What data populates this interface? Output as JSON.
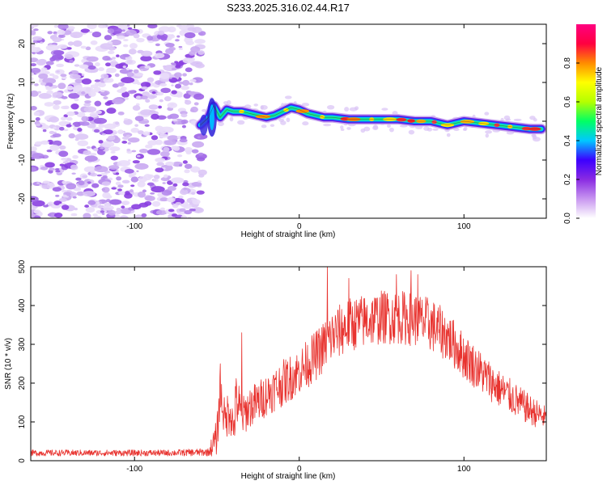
{
  "title": "S233.2025.316.02.44.R17",
  "colors": {
    "line": "#e8332f",
    "axes": "#000000",
    "background": "#ffffff"
  },
  "chart_data": [
    {
      "type": "heatmap",
      "title": "S233.2025.316.02.44.R17",
      "xlabel": "Height of straight line (km)",
      "ylabel": "Frequency (Hz)",
      "xlim": [
        -163,
        150
      ],
      "ylim": [
        -25,
        25
      ],
      "x_ticks": [
        -100,
        0,
        100
      ],
      "y_ticks": [
        -20,
        -10,
        0,
        10,
        20
      ],
      "x_tick_labels": [
        "-100",
        "0",
        "100"
      ],
      "y_tick_labels": [
        "-20",
        "-10",
        "0",
        "10",
        "20"
      ],
      "grid": false,
      "noise_region_x": [
        -163,
        -60
      ],
      "signal_track": {
        "x": [
          -60,
          -55,
          -52,
          -48,
          -44,
          -40,
          -35,
          -30,
          -25,
          -20,
          -15,
          -10,
          -5,
          0,
          5,
          10,
          15,
          20,
          30,
          40,
          50,
          60,
          70,
          80,
          90,
          100,
          110,
          120,
          130,
          140,
          147
        ],
        "y": [
          -1,
          1,
          4,
          1,
          3,
          2.5,
          2.5,
          2,
          1.5,
          1,
          1.5,
          2.5,
          3.5,
          3,
          2,
          1.5,
          1,
          1,
          0.5,
          0.5,
          0.5,
          0.5,
          0,
          0,
          -1,
          0,
          -0.5,
          -1,
          -1.5,
          -2,
          -2
        ]
      },
      "colorbar": {
        "label": "Normalized spectral amplitude",
        "range": [
          0.0,
          1.0
        ],
        "ticks": [
          0.0,
          0.2,
          0.4,
          0.6,
          0.8
        ],
        "tick_labels": [
          "0.0",
          "0.2",
          "0.4",
          "0.6",
          "0.8"
        ],
        "colormap": [
          "#ffffff",
          "#c896f0",
          "#8a2be2",
          "#3c00ff",
          "#00c8ff",
          "#00ff64",
          "#b4ff00",
          "#ffff00",
          "#ff8c00",
          "#ff0040",
          "#ff0080"
        ]
      }
    },
    {
      "type": "line",
      "xlabel": "Height of straight line (km)",
      "ylabel": "SNR (10 * v/v)",
      "xlim": [
        -163,
        150
      ],
      "ylim": [
        0,
        500
      ],
      "x_ticks": [
        -100,
        0,
        100
      ],
      "y_ticks": [
        0,
        100,
        200,
        300,
        400,
        500
      ],
      "x_tick_labels": [
        "-100",
        "0",
        "100"
      ],
      "y_tick_labels": [
        "0",
        "100",
        "200",
        "300",
        "400",
        "500"
      ],
      "grid": false,
      "series_color": "#e8332f",
      "envelope": {
        "x": [
          -163,
          -120,
          -80,
          -55,
          -50,
          -48,
          -45,
          -42,
          -40,
          -38,
          -35,
          -30,
          -25,
          -20,
          -10,
          0,
          10,
          20,
          30,
          40,
          50,
          60,
          70,
          80,
          90,
          100,
          110,
          120,
          130,
          140,
          150
        ],
        "mean": [
          20,
          20,
          20,
          22,
          60,
          180,
          100,
          140,
          80,
          160,
          110,
          140,
          150,
          170,
          200,
          230,
          270,
          320,
          350,
          360,
          370,
          370,
          365,
          350,
          320,
          270,
          230,
          190,
          160,
          130,
          110
        ],
        "spread": [
          8,
          8,
          8,
          10,
          50,
          60,
          50,
          70,
          50,
          80,
          50,
          55,
          55,
          55,
          60,
          60,
          65,
          70,
          70,
          70,
          70,
          70,
          70,
          70,
          65,
          60,
          55,
          50,
          45,
          40,
          30
        ]
      },
      "spikes": {
        "x": [
          -48,
          -35,
          17,
          30,
          59,
          68,
          72
        ],
        "y": [
          250,
          330,
          500,
          470,
          480,
          490,
          480
        ]
      }
    }
  ]
}
